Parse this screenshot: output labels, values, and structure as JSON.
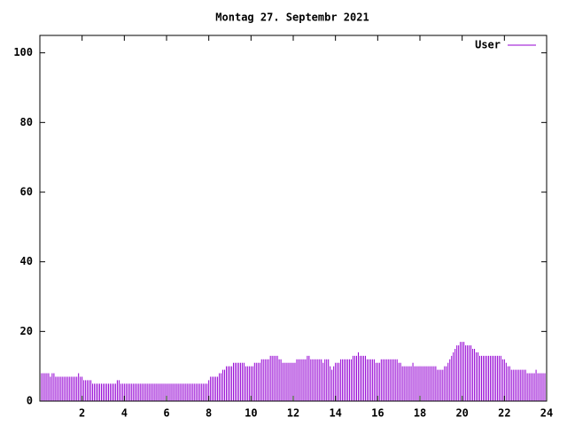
{
  "chart_data": {
    "type": "impulse",
    "title": "Montag 27. Septembr 2021",
    "xlim": [
      0,
      24
    ],
    "xticks": [
      2,
      4,
      6,
      8,
      10,
      12,
      14,
      16,
      18,
      20,
      22,
      24
    ],
    "ylim": [
      0,
      105
    ],
    "yticks": [
      0,
      20,
      40,
      60,
      80,
      100
    ],
    "legend": "top-right",
    "x": [
      0,
      0.083,
      0.167,
      0.25,
      0.333,
      0.417,
      0.5,
      0.583,
      0.667,
      0.75,
      0.833,
      0.917,
      1,
      1.083,
      1.167,
      1.25,
      1.333,
      1.417,
      1.5,
      1.583,
      1.667,
      1.75,
      1.833,
      1.917,
      2,
      2.083,
      2.167,
      2.25,
      2.333,
      2.417,
      2.5,
      2.583,
      2.667,
      2.75,
      2.833,
      2.917,
      3,
      3.083,
      3.167,
      3.25,
      3.333,
      3.417,
      3.5,
      3.583,
      3.667,
      3.75,
      3.833,
      3.917,
      4,
      4.083,
      4.167,
      4.25,
      4.333,
      4.417,
      4.5,
      4.583,
      4.667,
      4.75,
      4.833,
      4.917,
      5,
      5.083,
      5.167,
      5.25,
      5.333,
      5.417,
      5.5,
      5.583,
      5.667,
      5.75,
      5.833,
      5.917,
      6,
      6.083,
      6.167,
      6.25,
      6.333,
      6.417,
      6.5,
      6.583,
      6.667,
      6.75,
      6.833,
      6.917,
      7,
      7.083,
      7.167,
      7.25,
      7.333,
      7.417,
      7.5,
      7.583,
      7.667,
      7.75,
      7.833,
      7.917,
      8,
      8.083,
      8.167,
      8.25,
      8.333,
      8.417,
      8.5,
      8.583,
      8.667,
      8.75,
      8.833,
      8.917,
      9,
      9.083,
      9.167,
      9.25,
      9.333,
      9.417,
      9.5,
      9.583,
      9.667,
      9.75,
      9.833,
      9.917,
      10,
      10.083,
      10.167,
      10.25,
      10.333,
      10.417,
      10.5,
      10.583,
      10.667,
      10.75,
      10.833,
      10.917,
      11,
      11.083,
      11.167,
      11.25,
      11.333,
      11.417,
      11.5,
      11.583,
      11.667,
      11.75,
      11.833,
      11.917,
      12,
      12.083,
      12.167,
      12.25,
      12.333,
      12.417,
      12.5,
      12.583,
      12.667,
      12.75,
      12.833,
      12.917,
      13,
      13.083,
      13.167,
      13.25,
      13.333,
      13.417,
      13.5,
      13.583,
      13.667,
      13.75,
      13.833,
      13.917,
      14,
      14.083,
      14.167,
      14.25,
      14.333,
      14.417,
      14.5,
      14.583,
      14.667,
      14.75,
      14.833,
      14.917,
      15,
      15.083,
      15.167,
      15.25,
      15.333,
      15.417,
      15.5,
      15.583,
      15.667,
      15.75,
      15.833,
      15.917,
      16,
      16.083,
      16.167,
      16.25,
      16.333,
      16.417,
      16.5,
      16.583,
      16.667,
      16.75,
      16.833,
      16.917,
      17,
      17.083,
      17.167,
      17.25,
      17.333,
      17.417,
      17.5,
      17.583,
      17.667,
      17.75,
      17.833,
      17.917,
      18,
      18.083,
      18.167,
      18.25,
      18.333,
      18.417,
      18.5,
      18.583,
      18.667,
      18.75,
      18.833,
      18.917,
      19,
      19.083,
      19.167,
      19.25,
      19.333,
      19.417,
      19.5,
      19.583,
      19.667,
      19.75,
      19.833,
      19.917,
      20,
      20.083,
      20.167,
      20.25,
      20.333,
      20.417,
      20.5,
      20.583,
      20.667,
      20.75,
      20.833,
      20.917,
      21,
      21.083,
      21.167,
      21.25,
      21.333,
      21.417,
      21.5,
      21.583,
      21.667,
      21.75,
      21.833,
      21.917,
      22,
      22.083,
      22.167,
      22.25,
      22.333,
      22.417,
      22.5,
      22.583,
      22.667,
      22.75,
      22.833,
      22.917,
      23,
      23.083,
      23.167,
      23.25,
      23.333,
      23.417,
      23.5,
      23.583,
      23.667,
      23.75,
      23.833,
      23.917
    ],
    "series": [
      {
        "name": "User",
        "color": "#9400d3",
        "values": [
          8,
          8,
          8,
          8,
          8,
          8,
          7,
          8,
          8,
          7,
          7,
          7,
          7,
          7,
          7,
          7,
          7,
          7,
          7,
          7,
          7,
          7,
          8,
          7,
          7,
          6,
          6,
          6,
          6,
          6,
          5,
          5,
          5,
          5,
          5,
          5,
          5,
          5,
          5,
          5,
          5,
          5,
          5,
          5,
          6,
          6,
          5,
          5,
          5,
          5,
          5,
          5,
          5,
          5,
          5,
          5,
          5,
          5,
          5,
          5,
          5,
          5,
          5,
          5,
          5,
          5,
          5,
          5,
          5,
          5,
          5,
          5,
          5,
          5,
          5,
          5,
          5,
          5,
          5,
          5,
          5,
          5,
          5,
          5,
          5,
          5,
          5,
          5,
          5,
          5,
          5,
          5,
          5,
          5,
          5,
          5,
          6,
          7,
          7,
          7,
          7,
          7,
          8,
          8,
          9,
          9,
          10,
          10,
          10,
          10,
          11,
          11,
          11,
          11,
          11,
          11,
          11,
          10,
          10,
          10,
          10,
          10,
          11,
          11,
          11,
          11,
          12,
          12,
          12,
          12,
          12,
          13,
          13,
          13,
          13,
          13,
          12,
          12,
          11,
          11,
          11,
          11,
          11,
          11,
          11,
          11,
          12,
          12,
          12,
          12,
          12,
          12,
          13,
          13,
          12,
          12,
          12,
          12,
          12,
          12,
          12,
          11,
          12,
          12,
          12,
          10,
          9,
          10,
          11,
          11,
          11,
          12,
          12,
          12,
          12,
          12,
          12,
          12,
          13,
          13,
          13,
          14,
          13,
          13,
          13,
          13,
          12,
          12,
          12,
          12,
          12,
          11,
          11,
          11,
          12,
          12,
          12,
          12,
          12,
          12,
          12,
          12,
          12,
          12,
          11,
          11,
          10,
          10,
          10,
          10,
          10,
          10,
          11,
          10,
          10,
          10,
          10,
          10,
          10,
          10,
          10,
          10,
          10,
          10,
          10,
          10,
          9,
          9,
          9,
          9,
          10,
          10,
          11,
          12,
          13,
          14,
          15,
          16,
          16,
          17,
          17,
          17,
          16,
          16,
          16,
          16,
          15,
          15,
          14,
          14,
          13,
          13,
          13,
          13,
          13,
          13,
          13,
          13,
          13,
          13,
          13,
          13,
          13,
          12,
          12,
          11,
          10,
          10,
          9,
          9,
          9,
          9,
          9,
          9,
          9,
          9,
          9,
          8,
          8,
          8,
          8,
          8,
          9,
          8,
          8,
          8,
          8,
          8
        ]
      }
    ]
  }
}
